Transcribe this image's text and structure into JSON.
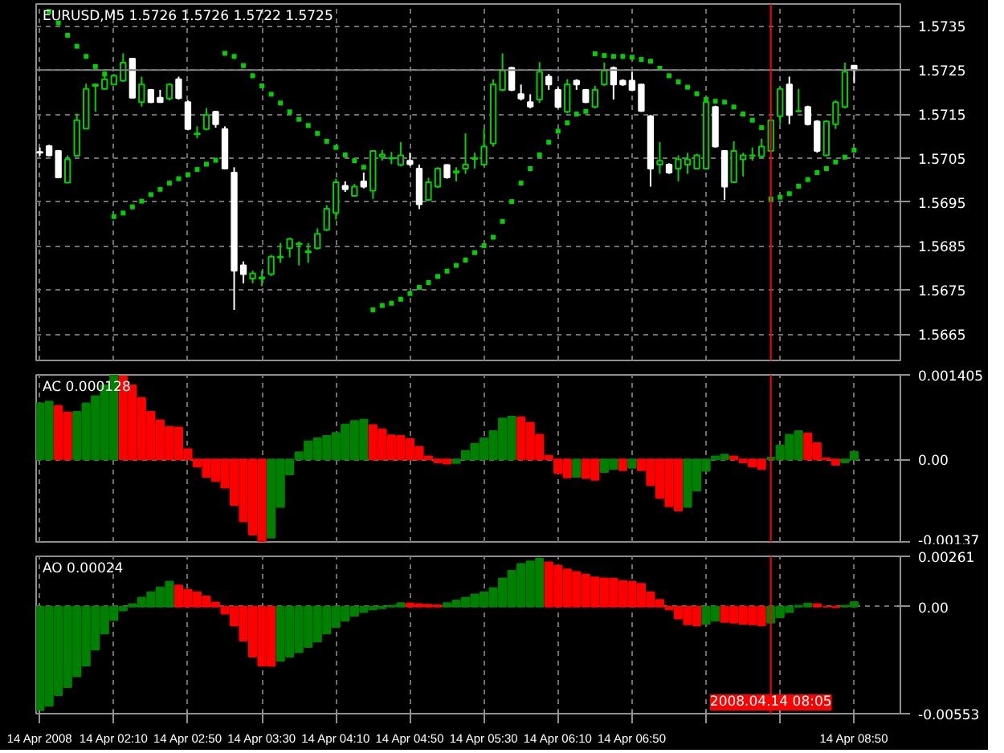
{
  "chart_data": [
    {
      "type": "candlestick",
      "title": "EURUSD,M5  1.5726 1.5726 1.5722 1.5725",
      "x": [
        "2008-04-14T01:30",
        "2008-04-14T01:35",
        "2008-04-14T01:40",
        "2008-04-14T01:45",
        "2008-04-14T01:50",
        "2008-04-14T01:55",
        "2008-04-14T02:00",
        "2008-04-14T02:05",
        "2008-04-14T02:10",
        "2008-04-14T02:15",
        "2008-04-14T02:20",
        "2008-04-14T02:25",
        "2008-04-14T02:30",
        "2008-04-14T02:35",
        "2008-04-14T02:40",
        "2008-04-14T02:45",
        "2008-04-14T02:50",
        "2008-04-14T02:55",
        "2008-04-14T03:00",
        "2008-04-14T03:05",
        "2008-04-14T03:10",
        "2008-04-14T03:15",
        "2008-04-14T03:20",
        "2008-04-14T03:25",
        "2008-04-14T03:30",
        "2008-04-14T03:35",
        "2008-04-14T03:40",
        "2008-04-14T03:45",
        "2008-04-14T03:50",
        "2008-04-14T03:55",
        "2008-04-14T04:00",
        "2008-04-14T04:05",
        "2008-04-14T04:10",
        "2008-04-14T04:15",
        "2008-04-14T04:20",
        "2008-04-14T04:25",
        "2008-04-14T04:30",
        "2008-04-14T04:35",
        "2008-04-14T04:40",
        "2008-04-14T04:45",
        "2008-04-14T04:50",
        "2008-04-14T04:55",
        "2008-04-14T05:00",
        "2008-04-14T05:05",
        "2008-04-14T05:10",
        "2008-04-14T05:15",
        "2008-04-14T05:20",
        "2008-04-14T05:25",
        "2008-04-14T05:30",
        "2008-04-14T05:35",
        "2008-04-14T05:40",
        "2008-04-14T05:45",
        "2008-04-14T05:50",
        "2008-04-14T05:55",
        "2008-04-14T06:00",
        "2008-04-14T06:05",
        "2008-04-14T06:10",
        "2008-04-14T06:15",
        "2008-04-14T06:20",
        "2008-04-14T06:25",
        "2008-04-14T06:30",
        "2008-04-14T06:35",
        "2008-04-14T06:40",
        "2008-04-14T06:45",
        "2008-04-14T06:50",
        "2008-04-14T06:55",
        "2008-04-14T07:00",
        "2008-04-14T07:05",
        "2008-04-14T07:10",
        "2008-04-14T07:15",
        "2008-04-14T07:20",
        "2008-04-14T07:25",
        "2008-04-14T07:30",
        "2008-04-14T07:35",
        "2008-04-14T07:40",
        "2008-04-14T07:45",
        "2008-04-14T07:50",
        "2008-04-14T07:55",
        "2008-04-14T08:00",
        "2008-04-14T08:05",
        "2008-04-14T08:10",
        "2008-04-14T08:15",
        "2008-04-14T08:20",
        "2008-04-14T08:25",
        "2008-04-14T08:30",
        "2008-04-14T08:35",
        "2008-04-14T08:40",
        "2008-04-14T08:45",
        "2008-04-14T08:50"
      ],
      "ohlc": [
        [
          1.57064,
          1.57074,
          1.57055,
          1.57062
        ],
        [
          1.57077,
          1.5708,
          1.57054,
          1.57056
        ],
        [
          1.57066,
          1.57068,
          1.57004,
          1.57006
        ],
        [
          1.56994,
          1.57056,
          1.56993,
          1.57047
        ],
        [
          1.57055,
          1.57151,
          1.57054,
          1.57136
        ],
        [
          1.57117,
          1.57219,
          1.57116,
          1.57207
        ],
        [
          1.57214,
          1.57219,
          1.57155,
          1.57217
        ],
        [
          1.57207,
          1.57246,
          1.57205,
          1.57229
        ],
        [
          1.57217,
          1.57241,
          1.57217,
          1.57237
        ],
        [
          1.57226,
          1.57288,
          1.57223,
          1.57267
        ],
        [
          1.57276,
          1.57276,
          1.57186,
          1.57187
        ],
        [
          1.57177,
          1.57235,
          1.57167,
          1.57217
        ],
        [
          1.57205,
          1.57207,
          1.57175,
          1.57177
        ],
        [
          1.57187,
          1.57205,
          1.57176,
          1.57177
        ],
        [
          1.57185,
          1.5722,
          1.57181,
          1.57217
        ],
        [
          1.57229,
          1.57235,
          1.57183,
          1.57186
        ],
        [
          1.57177,
          1.57181,
          1.57113,
          1.57116
        ],
        [
          1.57104,
          1.57122,
          1.57095,
          1.57106
        ],
        [
          1.57116,
          1.57163,
          1.57113,
          1.57148
        ],
        [
          1.57155,
          1.57157,
          1.57119,
          1.57127
        ],
        [
          1.57116,
          1.57122,
          1.57024,
          1.57026
        ],
        [
          1.57017,
          1.57029,
          1.56705,
          1.56794
        ],
        [
          1.56806,
          1.56815,
          1.56765,
          1.56786
        ],
        [
          1.56776,
          1.56794,
          1.56765,
          1.56788
        ],
        [
          1.56776,
          1.56794,
          1.56759,
          1.56779
        ],
        [
          1.56786,
          1.5683,
          1.56782,
          1.56826
        ],
        [
          1.56824,
          1.56857,
          1.56812,
          1.56826
        ],
        [
          1.56845,
          1.56869,
          1.56824,
          1.56866
        ],
        [
          1.56854,
          1.5686,
          1.56806,
          1.56856
        ],
        [
          1.56836,
          1.56857,
          1.56812,
          1.56838
        ],
        [
          1.56845,
          1.5689,
          1.56842,
          1.56878
        ],
        [
          1.56887,
          1.56943,
          1.56884,
          1.56935
        ],
        [
          1.56925,
          1.57003,
          1.5691,
          1.56995
        ],
        [
          1.56987,
          1.56997,
          1.56973,
          1.56979
        ],
        [
          1.56964,
          1.56991,
          1.56963,
          1.56985
        ],
        [
          1.56997,
          1.57017,
          1.56981,
          1.56985
        ],
        [
          1.56976,
          1.57068,
          1.56957,
          1.57066
        ],
        [
          1.57053,
          1.57068,
          1.57044,
          1.57058
        ],
        [
          1.57049,
          1.57064,
          1.57036,
          1.5705
        ],
        [
          1.57034,
          1.57086,
          1.57031,
          1.57056
        ],
        [
          1.57044,
          1.57062,
          1.57032,
          1.57036
        ],
        [
          1.57026,
          1.57035,
          1.56934,
          1.56945
        ],
        [
          1.56955,
          1.57005,
          1.56952,
          1.56995
        ],
        [
          1.56985,
          1.57029,
          1.56982,
          1.57026
        ],
        [
          1.57034,
          1.57036,
          1.57003,
          1.57006
        ],
        [
          1.57017,
          1.57029,
          1.56997,
          1.5702
        ],
        [
          1.57026,
          1.57106,
          1.57014,
          1.57035
        ],
        [
          1.57048,
          1.57062,
          1.57026,
          1.5705
        ],
        [
          1.57035,
          1.57116,
          1.57032,
          1.57076
        ],
        [
          1.57083,
          1.57229,
          1.57076,
          1.57217
        ],
        [
          1.57205,
          1.57288,
          1.57202,
          1.57249
        ],
        [
          1.57255,
          1.57257,
          1.57202,
          1.57205
        ],
        [
          1.57195,
          1.57217,
          1.57181,
          1.57185
        ],
        [
          1.57177,
          1.57195,
          1.57163,
          1.57167
        ],
        [
          1.57183,
          1.57268,
          1.57175,
          1.57246
        ],
        [
          1.57235,
          1.57241,
          1.57205,
          1.57217
        ],
        [
          1.57205,
          1.57211,
          1.57163,
          1.57166
        ],
        [
          1.57155,
          1.57229,
          1.57152,
          1.57217
        ],
        [
          1.57226,
          1.57229,
          1.57205,
          1.57217
        ],
        [
          1.57205,
          1.57207,
          1.57175,
          1.57177
        ],
        [
          1.57166,
          1.57214,
          1.57163,
          1.57205
        ],
        [
          1.57217,
          1.57267,
          1.57214,
          1.57249
        ],
        [
          1.57255,
          1.57258,
          1.57183,
          1.57217
        ],
        [
          1.57226,
          1.57229,
          1.57214,
          1.57217
        ],
        [
          1.57226,
          1.57246,
          1.57202,
          1.57205
        ],
        [
          1.57217,
          1.57217,
          1.57155,
          1.57157
        ],
        [
          1.57145,
          1.57148,
          1.56985,
          1.57026
        ],
        [
          1.57035,
          1.57086,
          1.57014,
          1.57044
        ],
        [
          1.57035,
          1.57038,
          1.57014,
          1.57017
        ],
        [
          1.57026,
          1.57056,
          1.56997,
          1.57047
        ],
        [
          1.57035,
          1.57062,
          1.57014,
          1.57047
        ],
        [
          1.57026,
          1.5706,
          1.57024,
          1.57056
        ],
        [
          1.57026,
          1.57189,
          1.57024,
          1.57177
        ],
        [
          1.57166,
          1.57169,
          1.57074,
          1.57076
        ],
        [
          1.57066,
          1.57068,
          1.56955,
          1.56985
        ],
        [
          1.56995,
          1.57088,
          1.56994,
          1.57066
        ],
        [
          1.57047,
          1.57062,
          1.57008,
          1.57056
        ],
        [
          1.57055,
          1.57074,
          1.57044,
          1.57056
        ],
        [
          1.57054,
          1.57094,
          1.5705,
          1.57076
        ],
        [
          1.57066,
          1.57136,
          1.57062,
          1.57136
        ],
        [
          1.57145,
          1.57211,
          1.57127,
          1.57207
        ],
        [
          1.57217,
          1.57235,
          1.57127,
          1.57148
        ],
        [
          1.57156,
          1.57207,
          1.57155,
          1.57157
        ],
        [
          1.57166,
          1.57169,
          1.57124,
          1.57127
        ],
        [
          1.57133,
          1.57136,
          1.57062,
          1.57066
        ],
        [
          1.57056,
          1.57136,
          1.57054,
          1.57133
        ],
        [
          1.57127,
          1.57181,
          1.57116,
          1.57177
        ],
        [
          1.57166,
          1.57267,
          1.57163,
          1.57246
        ],
        [
          1.5726,
          1.5726,
          1.5722,
          1.5725
        ]
      ],
      "series": [
        {
          "type": "scatter",
          "color": "#00d000",
          "values": [
            null,
            1.57383,
            1.57357,
            1.57329,
            1.57304,
            1.57281,
            1.57258,
            1.57241,
            1.56917,
            1.56925,
            1.56939,
            1.56952,
            1.56967,
            1.56979,
            1.56993,
            1.57003,
            1.57012,
            1.57024,
            1.57036,
            1.57045,
            1.57288,
            1.57281,
            1.5726,
            1.57237,
            1.57214,
            1.57195,
            1.57175,
            1.57155,
            1.57138,
            1.57124,
            1.57106,
            1.57088,
            1.57074,
            1.57057,
            1.57044,
            1.57029,
            1.56705,
            1.56715,
            1.5672,
            1.56729,
            1.56742,
            1.56756,
            1.56767,
            1.56781,
            1.56793,
            1.56806,
            1.56818,
            1.56835,
            1.56851,
            1.5687,
            1.56906,
            1.56951,
            1.56993,
            1.57026,
            1.57057,
            1.57086,
            1.57111,
            1.5713,
            1.5715,
            1.57156,
            1.57287,
            1.57283,
            1.57281,
            1.57281,
            1.57279,
            1.57274,
            1.5727,
            1.57254,
            1.57237,
            1.57223,
            1.57211,
            1.57196,
            1.57183,
            1.57179,
            1.57177,
            1.57166,
            1.5715,
            1.57136,
            1.57119,
            1.56957,
            1.56961,
            1.56969,
            1.56986,
            1.57001,
            1.57017,
            1.57026,
            1.57041,
            1.57052,
            1.57068
          ]
        }
      ],
      "marker": "square",
      "xlim": [
        "2008-04-14T01:28",
        "2008-04-14T09:15"
      ],
      "xticks": [
        {
          "value": "2008-04-14T01:30",
          "label": null
        },
        {
          "value": "2008-04-14T02:10",
          "label": null
        },
        {
          "value": "2008-04-14T02:50",
          "label": null
        },
        {
          "value": "2008-04-14T03:30",
          "label": null
        },
        {
          "value": "2008-04-14T04:10",
          "label": null
        },
        {
          "value": "2008-04-14T04:50",
          "label": null
        },
        {
          "value": "2008-04-14T05:30",
          "label": null
        },
        {
          "value": "2008-04-14T06:10",
          "label": null
        },
        {
          "value": "2008-04-14T06:50",
          "label": null
        },
        {
          "value": "2008-04-14T07:30",
          "label": null
        },
        {
          "value": "2008-04-14T08:10",
          "label": null
        },
        {
          "value": "2008-04-14T08:50",
          "label": null
        }
      ],
      "ylim": [
        1.5659,
        1.574
      ],
      "yticks": [
        1.5665,
        1.5675,
        1.5685,
        1.5695,
        1.5705,
        1.5715,
        1.5725,
        1.5735
      ],
      "tick_labels": "y",
      "grid": true,
      "ref_lines": [
        {
          "axis": "y",
          "value": 1.5725,
          "color": "#808080"
        },
        {
          "axis": "x",
          "value": "2008-04-14T08:05",
          "color": "#ff0000"
        }
      ]
    },
    {
      "type": "bar",
      "title": "AC 0.000128",
      "x": [
        "2008-04-14T01:30",
        "2008-04-14T01:35",
        "2008-04-14T01:40",
        "2008-04-14T01:45",
        "2008-04-14T01:50",
        "2008-04-14T01:55",
        "2008-04-14T02:00",
        "2008-04-14T02:05",
        "2008-04-14T02:10",
        "2008-04-14T02:15",
        "2008-04-14T02:20",
        "2008-04-14T02:25",
        "2008-04-14T02:30",
        "2008-04-14T02:35",
        "2008-04-14T02:40",
        "2008-04-14T02:45",
        "2008-04-14T02:50",
        "2008-04-14T02:55",
        "2008-04-14T03:00",
        "2008-04-14T03:05",
        "2008-04-14T03:10",
        "2008-04-14T03:15",
        "2008-04-14T03:20",
        "2008-04-14T03:25",
        "2008-04-14T03:30",
        "2008-04-14T03:35",
        "2008-04-14T03:40",
        "2008-04-14T03:45",
        "2008-04-14T03:50",
        "2008-04-14T03:55",
        "2008-04-14T04:00",
        "2008-04-14T04:05",
        "2008-04-14T04:10",
        "2008-04-14T04:15",
        "2008-04-14T04:20",
        "2008-04-14T04:25",
        "2008-04-14T04:30",
        "2008-04-14T04:35",
        "2008-04-14T04:40",
        "2008-04-14T04:45",
        "2008-04-14T04:50",
        "2008-04-14T04:55",
        "2008-04-14T05:00",
        "2008-04-14T05:05",
        "2008-04-14T05:10",
        "2008-04-14T05:15",
        "2008-04-14T05:20",
        "2008-04-14T05:25",
        "2008-04-14T05:30",
        "2008-04-14T05:35",
        "2008-04-14T05:40",
        "2008-04-14T05:45",
        "2008-04-14T05:50",
        "2008-04-14T05:55",
        "2008-04-14T06:00",
        "2008-04-14T06:05",
        "2008-04-14T06:10",
        "2008-04-14T06:15",
        "2008-04-14T06:20",
        "2008-04-14T06:25",
        "2008-04-14T06:30",
        "2008-04-14T06:35",
        "2008-04-14T06:40",
        "2008-04-14T06:45",
        "2008-04-14T06:50",
        "2008-04-14T06:55",
        "2008-04-14T07:00",
        "2008-04-14T07:05",
        "2008-04-14T07:10",
        "2008-04-14T07:15",
        "2008-04-14T07:20",
        "2008-04-14T07:25",
        "2008-04-14T07:30",
        "2008-04-14T07:35",
        "2008-04-14T07:40",
        "2008-04-14T07:45",
        "2008-04-14T07:50",
        "2008-04-14T07:55",
        "2008-04-14T08:00",
        "2008-04-14T08:05",
        "2008-04-14T08:10",
        "2008-04-14T08:15",
        "2008-04-14T08:20",
        "2008-04-14T08:25",
        "2008-04-14T08:30",
        "2008-04-14T08:35",
        "2008-04-14T08:40",
        "2008-04-14T08:45",
        "2008-04-14T08:50"
      ],
      "values": [
        0.00093,
        0.00096,
        0.00089,
        0.00078,
        0.00079,
        0.00093,
        0.00105,
        0.00123,
        0.0014,
        0.00138,
        0.00123,
        0.00102,
        0.00079,
        0.00065,
        0.00054,
        0.00053,
        0.00017,
        -0.00012,
        -0.00029,
        -0.00036,
        -0.00047,
        -0.00076,
        -0.00103,
        -0.00125,
        -0.00136,
        -0.0013,
        -0.00079,
        -0.00025,
        0.00012,
        0.0003,
        0.00035,
        0.00039,
        0.00044,
        0.00058,
        0.00064,
        0.00066,
        0.00057,
        0.0005,
        0.0004,
        0.00039,
        0.00034,
        0.00021,
        5e-05,
        -5e-05,
        -7e-05,
        -6e-05,
        0.00014,
        0.00026,
        0.00035,
        0.00047,
        0.00068,
        0.00071,
        0.0007,
        0.00061,
        0.00041,
        6e-05,
        -0.00023,
        -0.0003,
        -0.00029,
        -0.00031,
        -0.00034,
        -0.00021,
        -0.00016,
        -0.00018,
        -0.00014,
        -0.00018,
        -0.00043,
        -0.00064,
        -0.00078,
        -0.00085,
        -0.00079,
        -0.00052,
        -0.00019,
        5e-05,
        8e-05,
        5e-05,
        -5e-05,
        -0.00012,
        -0.00016,
        3e-05,
        0.00023,
        0.00041,
        0.00047,
        0.00043,
        0.00027,
        2e-05,
        -9e-05,
        -5e-05,
        0.000128
      ],
      "colors": [
        "#008000",
        "#008000",
        "#ff0000",
        "#ff0000",
        "#008000",
        "#008000",
        "#008000",
        "#008000",
        "#008000",
        "#ff0000",
        "#ff0000",
        "#ff0000",
        "#ff0000",
        "#ff0000",
        "#ff0000",
        "#ff0000",
        "#ff0000",
        "#ff0000",
        "#ff0000",
        "#ff0000",
        "#ff0000",
        "#ff0000",
        "#ff0000",
        "#ff0000",
        "#ff0000",
        "#008000",
        "#008000",
        "#008000",
        "#008000",
        "#008000",
        "#008000",
        "#008000",
        "#008000",
        "#008000",
        "#008000",
        "#008000",
        "#ff0000",
        "#ff0000",
        "#ff0000",
        "#ff0000",
        "#ff0000",
        "#ff0000",
        "#ff0000",
        "#ff0000",
        "#ff0000",
        "#008000",
        "#008000",
        "#008000",
        "#008000",
        "#008000",
        "#008000",
        "#008000",
        "#ff0000",
        "#ff0000",
        "#ff0000",
        "#ff0000",
        "#ff0000",
        "#ff0000",
        "#008000",
        "#ff0000",
        "#ff0000",
        "#008000",
        "#008000",
        "#ff0000",
        "#008000",
        "#ff0000",
        "#ff0000",
        "#ff0000",
        "#ff0000",
        "#ff0000",
        "#008000",
        "#008000",
        "#008000",
        "#008000",
        "#008000",
        "#ff0000",
        "#ff0000",
        "#ff0000",
        "#ff0000",
        "#008000",
        "#008000",
        "#008000",
        "#008000",
        "#ff0000",
        "#ff0000",
        "#ff0000",
        "#ff0000",
        "#008000",
        "#008000"
      ],
      "xlim": [
        "2008-04-14T01:28",
        "2008-04-14T09:15"
      ],
      "xticks": [
        {
          "value": "2008-04-14T01:30",
          "label": null
        },
        {
          "value": "2008-04-14T02:10",
          "label": null
        },
        {
          "value": "2008-04-14T02:50",
          "label": null
        },
        {
          "value": "2008-04-14T03:30",
          "label": null
        },
        {
          "value": "2008-04-14T04:10",
          "label": null
        },
        {
          "value": "2008-04-14T04:50",
          "label": null
        },
        {
          "value": "2008-04-14T05:30",
          "label": null
        },
        {
          "value": "2008-04-14T06:10",
          "label": null
        },
        {
          "value": "2008-04-14T06:50",
          "label": null
        },
        {
          "value": "2008-04-14T07:30",
          "label": null
        },
        {
          "value": "2008-04-14T08:10",
          "label": null
        },
        {
          "value": "2008-04-14T08:50",
          "label": null
        }
      ],
      "ylim": [
        -0.00137,
        0.001405
      ],
      "yticks": [
        -0.00137,
        {
          "value": 0,
          "label": "0.00"
        },
        0.001405
      ],
      "tick_labels": "y",
      "grid": true,
      "ref_lines": [
        {
          "axis": "x",
          "value": "2008-04-14T08:05",
          "color": "#ff0000"
        }
      ]
    },
    {
      "type": "bar",
      "title": "AO 0.00024",
      "x": [
        "2008-04-14T01:30",
        "2008-04-14T01:35",
        "2008-04-14T01:40",
        "2008-04-14T01:45",
        "2008-04-14T01:50",
        "2008-04-14T01:55",
        "2008-04-14T02:00",
        "2008-04-14T02:05",
        "2008-04-14T02:10",
        "2008-04-14T02:15",
        "2008-04-14T02:20",
        "2008-04-14T02:25",
        "2008-04-14T02:30",
        "2008-04-14T02:35",
        "2008-04-14T02:40",
        "2008-04-14T02:45",
        "2008-04-14T02:50",
        "2008-04-14T02:55",
        "2008-04-14T03:00",
        "2008-04-14T03:05",
        "2008-04-14T03:10",
        "2008-04-14T03:15",
        "2008-04-14T03:20",
        "2008-04-14T03:25",
        "2008-04-14T03:30",
        "2008-04-14T03:35",
        "2008-04-14T03:40",
        "2008-04-14T03:45",
        "2008-04-14T03:50",
        "2008-04-14T03:55",
        "2008-04-14T04:00",
        "2008-04-14T04:05",
        "2008-04-14T04:10",
        "2008-04-14T04:15",
        "2008-04-14T04:20",
        "2008-04-14T04:25",
        "2008-04-14T04:30",
        "2008-04-14T04:35",
        "2008-04-14T04:40",
        "2008-04-14T04:45",
        "2008-04-14T04:50",
        "2008-04-14T04:55",
        "2008-04-14T05:00",
        "2008-04-14T05:05",
        "2008-04-14T05:10",
        "2008-04-14T05:15",
        "2008-04-14T05:20",
        "2008-04-14T05:25",
        "2008-04-14T05:30",
        "2008-04-14T05:35",
        "2008-04-14T05:40",
        "2008-04-14T05:45",
        "2008-04-14T05:50",
        "2008-04-14T05:55",
        "2008-04-14T06:00",
        "2008-04-14T06:05",
        "2008-04-14T06:10",
        "2008-04-14T06:15",
        "2008-04-14T06:20",
        "2008-04-14T06:25",
        "2008-04-14T06:30",
        "2008-04-14T06:35",
        "2008-04-14T06:40",
        "2008-04-14T06:45",
        "2008-04-14T06:50",
        "2008-04-14T06:55",
        "2008-04-14T07:00",
        "2008-04-14T07:05",
        "2008-04-14T07:10",
        "2008-04-14T07:15",
        "2008-04-14T07:20",
        "2008-04-14T07:25",
        "2008-04-14T07:30",
        "2008-04-14T07:35",
        "2008-04-14T07:40",
        "2008-04-14T07:45",
        "2008-04-14T07:50",
        "2008-04-14T07:55",
        "2008-04-14T08:00",
        "2008-04-14T08:05",
        "2008-04-14T08:10",
        "2008-04-14T08:15",
        "2008-04-14T08:20",
        "2008-04-14T08:25",
        "2008-04-14T08:30",
        "2008-04-14T08:35",
        "2008-04-14T08:40",
        "2008-04-14T08:45",
        "2008-04-14T08:50"
      ],
      "values": [
        -0.00535,
        -0.00512,
        -0.00457,
        -0.00416,
        -0.0036,
        -0.00305,
        -0.00222,
        -0.00139,
        -0.00069,
        -0.00019,
        0.00014,
        0.00047,
        0.00075,
        0.001,
        0.0013,
        0.0011,
        0.00089,
        0.00075,
        0.00053,
        0.00022,
        -0.00036,
        -0.00097,
        -0.00175,
        -0.00258,
        -0.00305,
        -0.00306,
        -0.0028,
        -0.00258,
        -0.00235,
        -0.00208,
        -0.0018,
        -0.00139,
        -0.00105,
        -0.00072,
        -0.00047,
        -0.00028,
        -0.00014,
        -8e-05,
        6e-05,
        0.00019,
        0.00017,
        0.00014,
        0.00011,
        8e-05,
        0.00019,
        0.00033,
        0.00047,
        0.00064,
        0.00075,
        0.00097,
        0.00147,
        0.00186,
        0.00222,
        0.00235,
        0.00249,
        0.0023,
        0.00213,
        0.00194,
        0.0018,
        0.00166,
        0.00152,
        0.00147,
        0.00146,
        0.00133,
        0.0013,
        0.00119,
        0.00075,
        0.00036,
        -0.00014,
        -0.00061,
        -0.00091,
        -0.00097,
        -0.00089,
        -0.00072,
        -0.00078,
        -0.00083,
        -0.00089,
        -0.00091,
        -0.00097,
        -0.00083,
        -0.00055,
        -0.00028,
        6e-05,
        0.00017,
        0.00014,
        0,
        -3e-05,
        6e-05,
        0.00024
      ],
      "colors": [
        "#008000",
        "#008000",
        "#008000",
        "#008000",
        "#008000",
        "#008000",
        "#008000",
        "#008000",
        "#008000",
        "#008000",
        "#008000",
        "#008000",
        "#008000",
        "#008000",
        "#008000",
        "#ff0000",
        "#ff0000",
        "#ff0000",
        "#ff0000",
        "#ff0000",
        "#ff0000",
        "#ff0000",
        "#ff0000",
        "#ff0000",
        "#ff0000",
        "#ff0000",
        "#008000",
        "#008000",
        "#008000",
        "#008000",
        "#008000",
        "#008000",
        "#008000",
        "#008000",
        "#008000",
        "#008000",
        "#008000",
        "#008000",
        "#008000",
        "#008000",
        "#ff0000",
        "#ff0000",
        "#ff0000",
        "#ff0000",
        "#008000",
        "#008000",
        "#008000",
        "#008000",
        "#008000",
        "#008000",
        "#008000",
        "#008000",
        "#008000",
        "#008000",
        "#008000",
        "#ff0000",
        "#ff0000",
        "#ff0000",
        "#ff0000",
        "#ff0000",
        "#ff0000",
        "#ff0000",
        "#ff0000",
        "#ff0000",
        "#ff0000",
        "#ff0000",
        "#ff0000",
        "#ff0000",
        "#ff0000",
        "#ff0000",
        "#ff0000",
        "#ff0000",
        "#008000",
        "#008000",
        "#ff0000",
        "#ff0000",
        "#ff0000",
        "#ff0000",
        "#ff0000",
        "#008000",
        "#008000",
        "#008000",
        "#008000",
        "#008000",
        "#ff0000",
        "#ff0000",
        "#ff0000",
        "#008000",
        "#008000"
      ],
      "xlim": [
        "2008-04-14T01:28",
        "2008-04-14T09:15"
      ],
      "xticks": [
        {
          "value": "2008-04-14T01:30",
          "label": "14 Apr 2008"
        },
        {
          "value": "2008-04-14T02:10",
          "label": "14 Apr 02:10"
        },
        {
          "value": "2008-04-14T02:50",
          "label": "14 Apr 02:50"
        },
        {
          "value": "2008-04-14T03:30",
          "label": "14 Apr 03:30"
        },
        {
          "value": "2008-04-14T04:10",
          "label": "14 Apr 04:10"
        },
        {
          "value": "2008-04-14T04:50",
          "label": "14 Apr 04:50"
        },
        {
          "value": "2008-04-14T05:30",
          "label": "14 Apr 05:30"
        },
        {
          "value": "2008-04-14T06:10",
          "label": "14 Apr 06:10"
        },
        {
          "value": "2008-04-14T06:50",
          "label": "14 Apr 06:50"
        },
        {
          "value": "2008-04-14T07:30",
          "label": null
        },
        {
          "value": "2008-04-14T08:10",
          "label": null
        },
        {
          "value": "2008-04-14T08:50",
          "label": "14 Apr 08:50"
        }
      ],
      "ylim": [
        -0.00553,
        0.00261
      ],
      "yticks": [
        -0.00553,
        {
          "value": 0,
          "label": "0.00"
        },
        0.00261
      ],
      "grid": true,
      "ref_lines": [
        {
          "axis": "x",
          "value": "2008-04-14T08:05",
          "color": "#ff0000",
          "label": "2008.04.14 08:05"
        }
      ]
    }
  ]
}
